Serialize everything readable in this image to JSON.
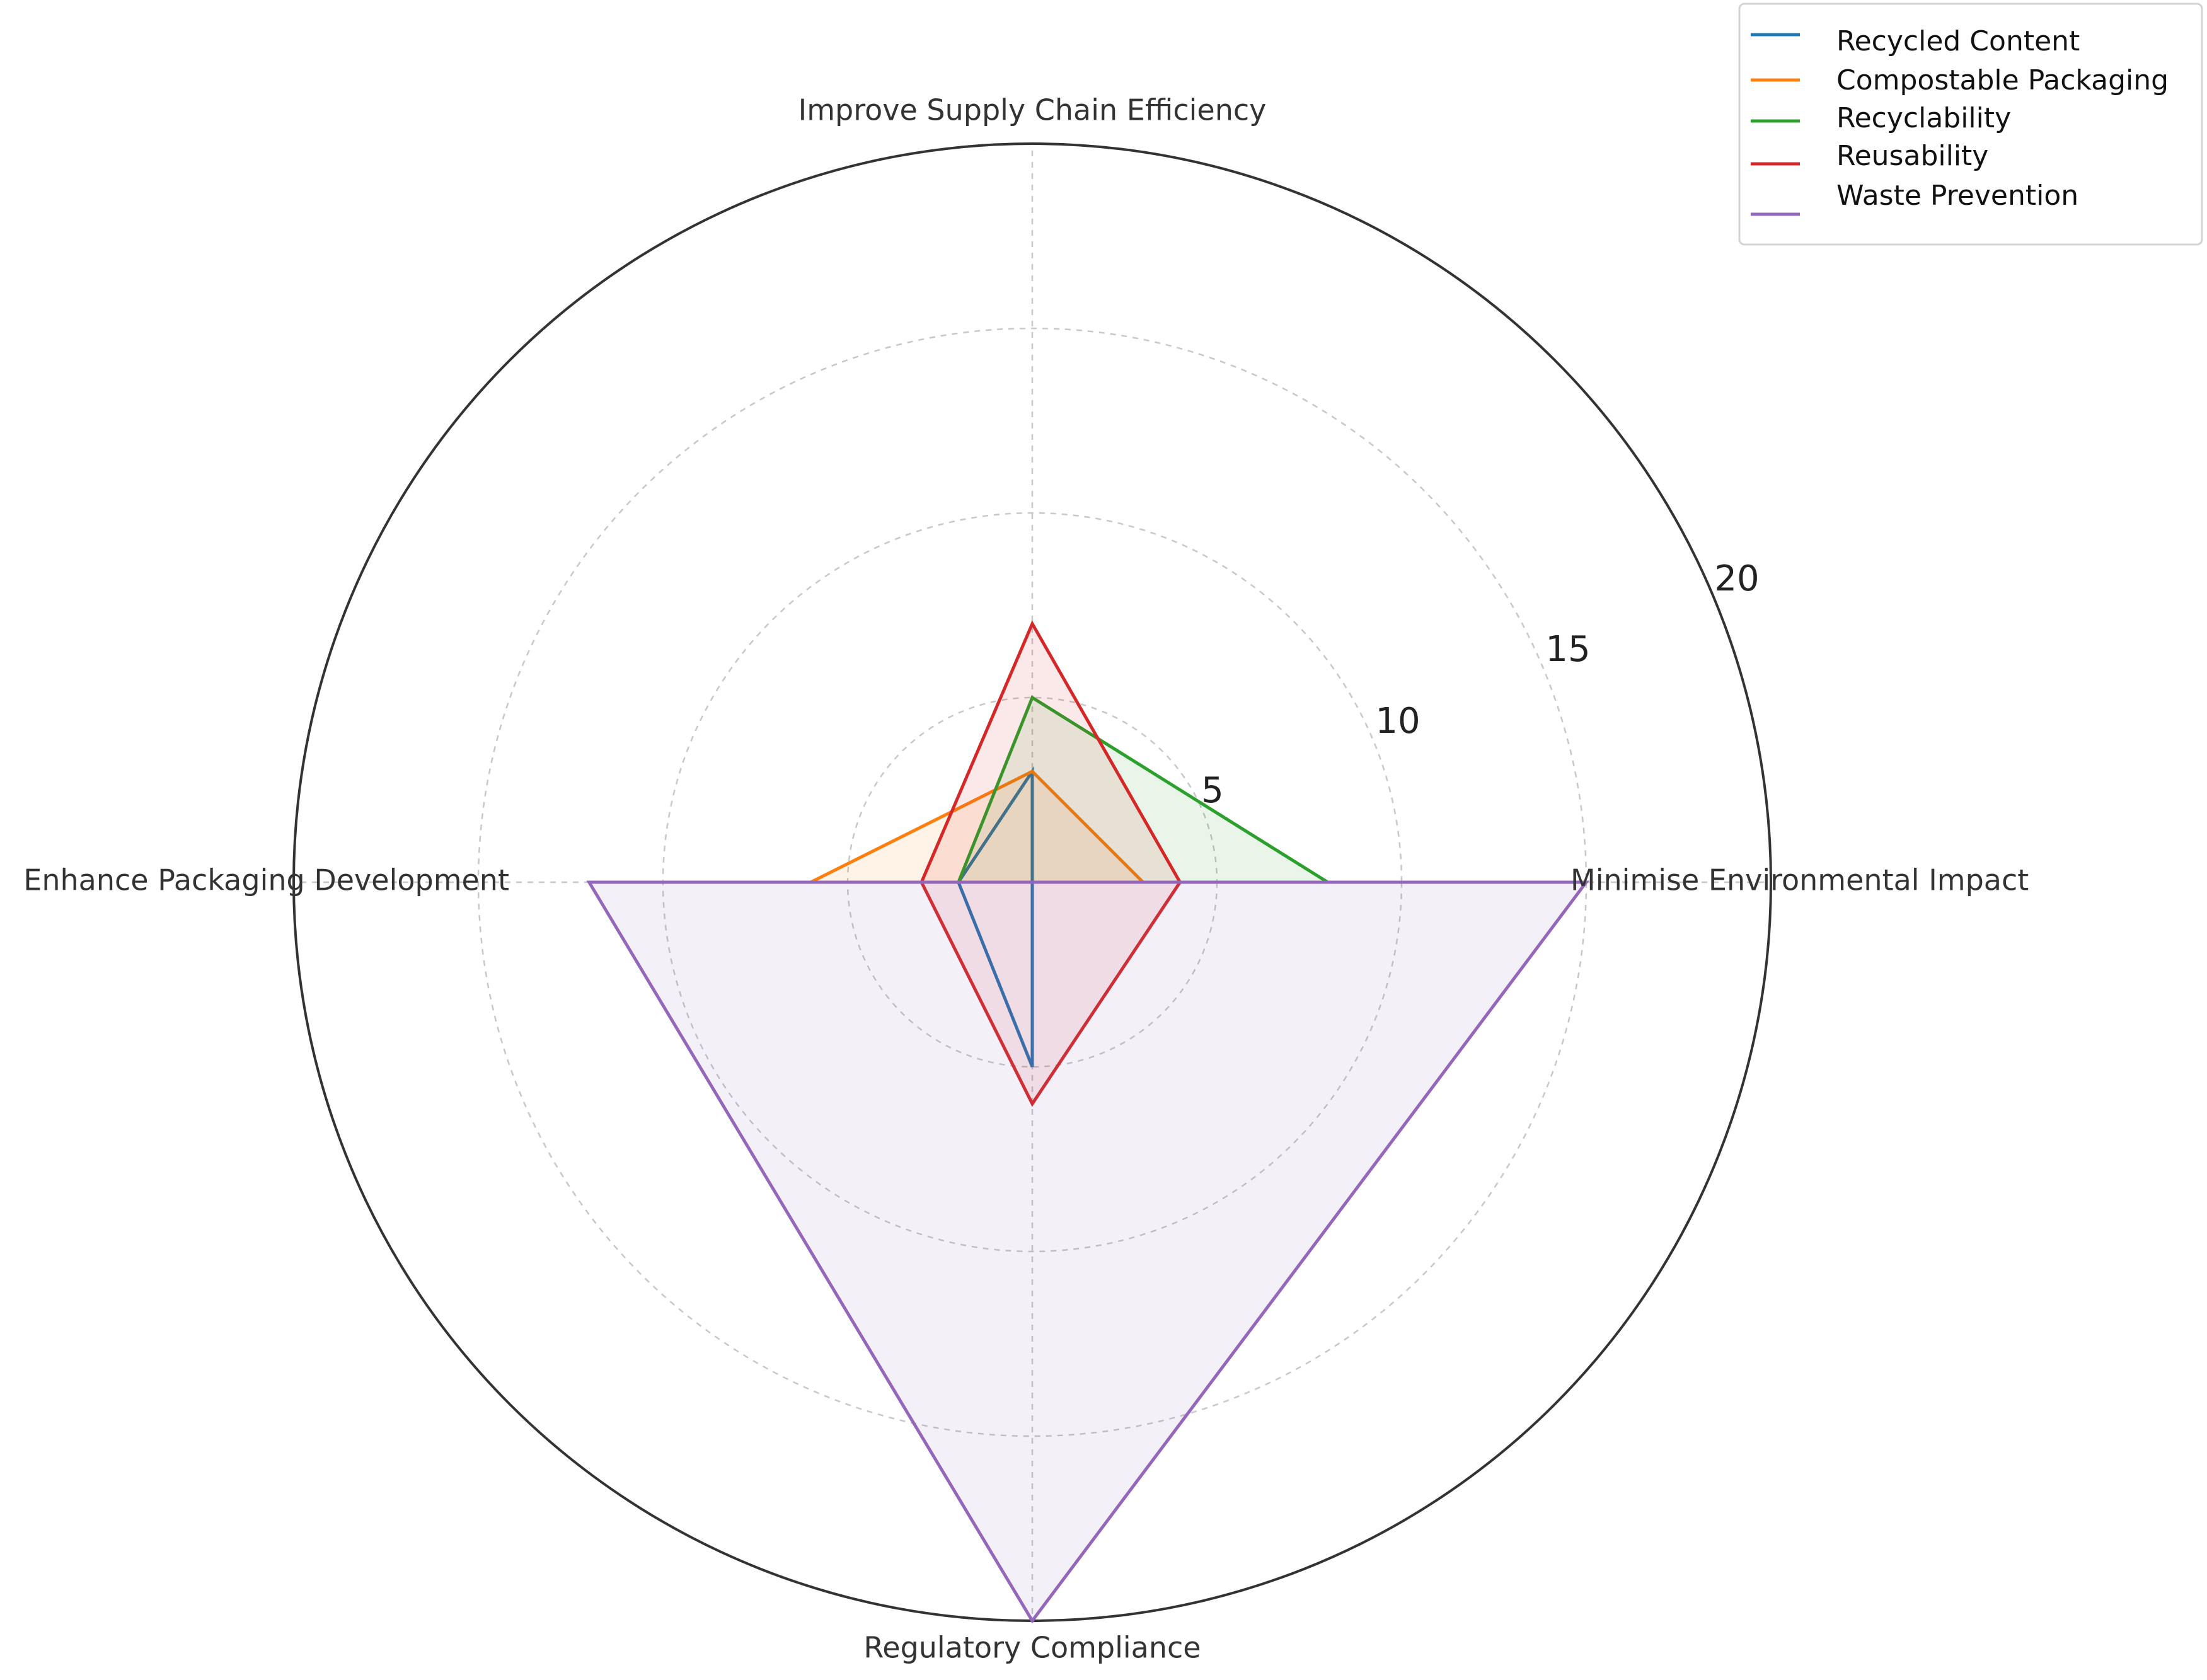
{
  "chart_data": {
    "type": "radar",
    "axes": [
      "Minimise Environmental Impact",
      "Improve Supply Chain Efficiency",
      "Enhance Packaging Development",
      "Regulatory Compliance"
    ],
    "rlim": [
      0,
      20
    ],
    "radial_ticks": [
      "5",
      "10",
      "15",
      "20"
    ],
    "grid": true,
    "legend_position": "top-right",
    "series": [
      {
        "name": "Recycled Content",
        "color": "#1f77b4",
        "values": [
          0,
          3,
          2,
          5
        ],
        "filled": false
      },
      {
        "name": "Compostable Packaging",
        "color": "#ff7f0e",
        "values": [
          3,
          3,
          6,
          0
        ],
        "filled": true
      },
      {
        "name": "Recyclability",
        "color": "#2ca02c",
        "values": [
          8,
          5,
          2,
          0
        ],
        "filled": true
      },
      {
        "name": "Reusability",
        "color": "#d62728",
        "values": [
          4,
          7,
          3,
          6
        ],
        "filled": true
      },
      {
        "name": "Waste Prevention",
        "color": "#9467bd",
        "values": [
          15,
          0,
          12,
          20
        ],
        "filled": true
      }
    ]
  }
}
